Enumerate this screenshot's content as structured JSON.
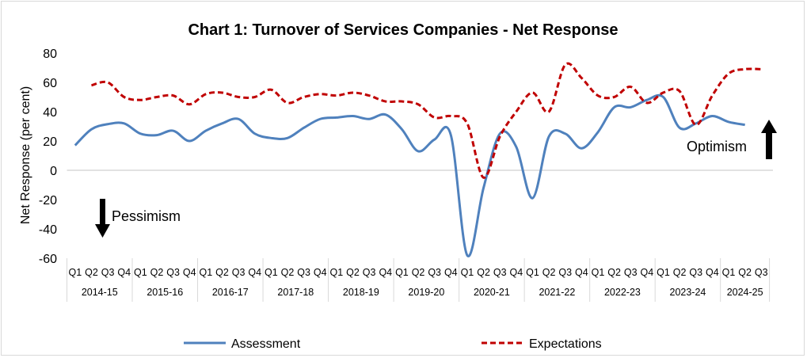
{
  "chart_data": {
    "type": "line",
    "title": "Chart 1: Turnover of Services Companies - Net Response",
    "xlabel": "",
    "ylabel": "Net Response (per cent)",
    "ylim": [
      -60,
      80
    ],
    "yticks": [
      -60,
      -40,
      -20,
      0,
      20,
      40,
      60,
      80
    ],
    "grid": "zero line only",
    "legend": "bottom",
    "years": [
      "2014-15",
      "2015-16",
      "2016-17",
      "2017-18",
      "2018-19",
      "2019-20",
      "2020-21",
      "2021-22",
      "2022-23",
      "2023-24",
      "2024-25"
    ],
    "quarters_per_year": [
      [
        "Q1",
        "Q2",
        "Q3",
        "Q4"
      ],
      [
        "Q1",
        "Q2",
        "Q3",
        "Q4"
      ],
      [
        "Q1",
        "Q2",
        "Q3",
        "Q4"
      ],
      [
        "Q1",
        "Q2",
        "Q3",
        "Q4"
      ],
      [
        "Q1",
        "Q2",
        "Q3",
        "Q4"
      ],
      [
        "Q1",
        "Q2",
        "Q3",
        "Q4"
      ],
      [
        "Q1",
        "Q2",
        "Q3",
        "Q4"
      ],
      [
        "Q1",
        "Q2",
        "Q3",
        "Q4"
      ],
      [
        "Q1",
        "Q2",
        "Q3",
        "Q4"
      ],
      [
        "Q1",
        "Q2",
        "Q3",
        "Q4"
      ],
      [
        "Q1",
        "Q2",
        "Q3"
      ]
    ],
    "series": [
      {
        "name": "Assessment",
        "color": "#4f81bd",
        "style": "solid",
        "values": [
          17,
          28,
          31.5,
          32,
          25,
          24,
          27,
          20,
          27,
          32,
          35,
          25,
          22,
          22,
          29,
          35,
          36,
          37,
          35,
          38,
          28,
          13,
          21,
          24,
          -58,
          -12,
          25,
          16,
          -19,
          23,
          25,
          15,
          26,
          43,
          43,
          48,
          50,
          29,
          32,
          37,
          33,
          31,
          null
        ]
      },
      {
        "name": "Expectations",
        "color": "#c00000",
        "style": "dashed",
        "values": [
          null,
          58,
          60,
          50,
          48,
          50,
          51,
          45,
          52,
          53,
          50,
          50,
          55,
          46,
          50,
          52,
          51,
          53,
          51,
          47,
          47,
          45,
          36,
          37,
          32,
          -5,
          23,
          40,
          53,
          40,
          72,
          63,
          51,
          50,
          57,
          46,
          53,
          54,
          31,
          51,
          66,
          69,
          69
        ]
      }
    ]
  },
  "annotations": {
    "pessimism": "Pessimism",
    "optimism": "Optimism"
  }
}
